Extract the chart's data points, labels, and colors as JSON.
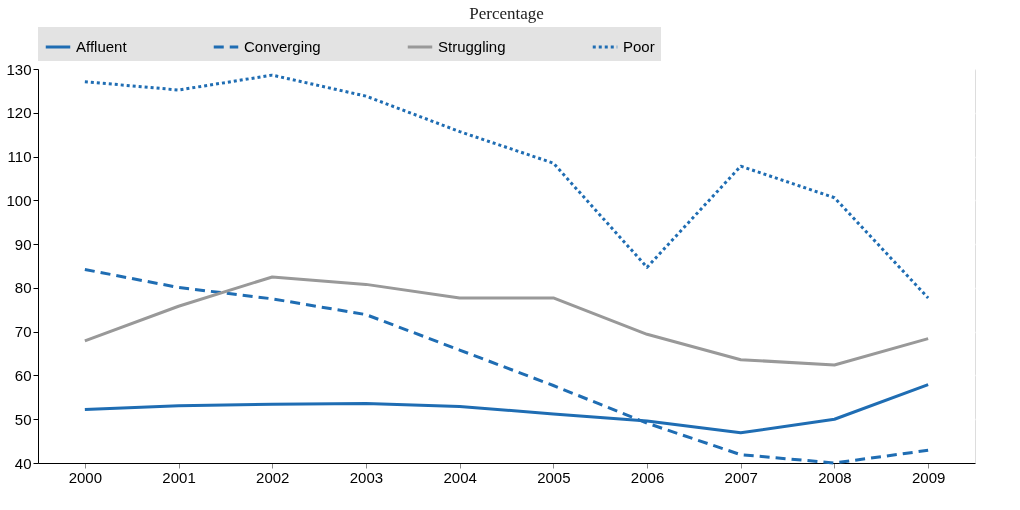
{
  "chart_data": {
    "type": "line",
    "subtitle": "Percentage",
    "categories": [
      "2000",
      "2001",
      "2002",
      "2003",
      "2004",
      "2005",
      "2006",
      "2007",
      "2008",
      "2009"
    ],
    "series": [
      {
        "name": "Affluent",
        "color": "#1f6db3",
        "line_style": "solid",
        "values": [
          52.2,
          53.1,
          53.4,
          53.6,
          52.9,
          51.2,
          49.6,
          46.9,
          50.0,
          57.9
        ]
      },
      {
        "name": "Converging",
        "color": "#1f6db3",
        "line_style": "dashed",
        "values": [
          84.2,
          80.1,
          77.5,
          73.9,
          65.8,
          57.7,
          49.1,
          41.9,
          40.0,
          42.9
        ]
      },
      {
        "name": "Struggling",
        "color": "#999999",
        "line_style": "solid",
        "values": [
          67.9,
          75.8,
          82.5,
          80.8,
          77.7,
          77.7,
          69.4,
          63.6,
          62.4,
          68.4
        ]
      },
      {
        "name": "Poor",
        "color": "#1f6db3",
        "line_style": "dotted",
        "values": [
          127.1,
          125.2,
          128.6,
          123.8,
          115.7,
          108.5,
          84.7,
          107.8,
          100.6,
          77.7
        ]
      }
    ],
    "ylim": [
      40,
      130
    ],
    "yticks": [
      40,
      50,
      60,
      70,
      80,
      90,
      100,
      110,
      120,
      130
    ],
    "grid": true,
    "legend": "top",
    "marker": "none"
  }
}
